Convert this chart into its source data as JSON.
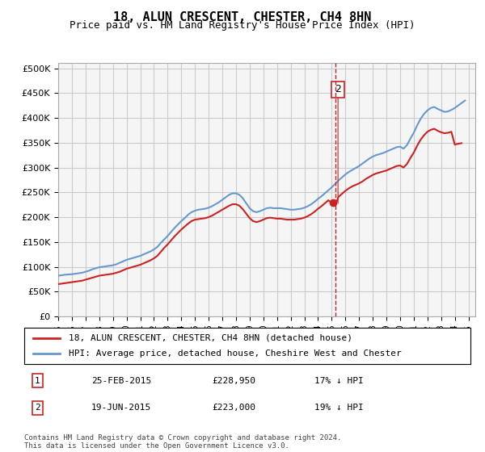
{
  "title": "18, ALUN CRESCENT, CHESTER, CH4 8HN",
  "subtitle": "Price paid vs. HM Land Registry's House Price Index (HPI)",
  "ylabel_ticks": [
    "£0",
    "£50K",
    "£100K",
    "£150K",
    "£200K",
    "£250K",
    "£300K",
    "£350K",
    "£400K",
    "£450K",
    "£500K"
  ],
  "ytick_vals": [
    0,
    50000,
    100000,
    150000,
    200000,
    250000,
    300000,
    350000,
    400000,
    450000,
    500000
  ],
  "ylim": [
    0,
    510000
  ],
  "xlim_start": 1995.0,
  "xlim_end": 2025.5,
  "hpi_color": "#6699cc",
  "price_color": "#cc2222",
  "annotation_color": "#cc2222",
  "grid_color": "#cccccc",
  "bg_color": "#f5f5f5",
  "legend_label_red": "18, ALUN CRESCENT, CHESTER, CH4 8HN (detached house)",
  "legend_label_blue": "HPI: Average price, detached house, Cheshire West and Chester",
  "transaction1_label": "1",
  "transaction1_date": "25-FEB-2015",
  "transaction1_price": "£228,950",
  "transaction1_pct": "17% ↓ HPI",
  "transaction2_label": "2",
  "transaction2_date": "19-JUN-2015",
  "transaction2_price": "£223,000",
  "transaction2_pct": "19% ↓ HPI",
  "footnote": "Contains HM Land Registry data © Crown copyright and database right 2024.\nThis data is licensed under the Open Government Licence v3.0.",
  "marker1_x": 2015.12,
  "marker1_y": 228950,
  "marker2_x": 2015.46,
  "marker2_y": 223000,
  "vline_x": 2015.3,
  "hpi_data_x": [
    1995,
    1995.25,
    1995.5,
    1995.75,
    1996,
    1996.25,
    1996.5,
    1996.75,
    1997,
    1997.25,
    1997.5,
    1997.75,
    1998,
    1998.25,
    1998.5,
    1998.75,
    1999,
    1999.25,
    1999.5,
    1999.75,
    2000,
    2000.25,
    2000.5,
    2000.75,
    2001,
    2001.25,
    2001.5,
    2001.75,
    2002,
    2002.25,
    2002.5,
    2002.75,
    2003,
    2003.25,
    2003.5,
    2003.75,
    2004,
    2004.25,
    2004.5,
    2004.75,
    2005,
    2005.25,
    2005.5,
    2005.75,
    2006,
    2006.25,
    2006.5,
    2006.75,
    2007,
    2007.25,
    2007.5,
    2007.75,
    2008,
    2008.25,
    2008.5,
    2008.75,
    2009,
    2009.25,
    2009.5,
    2009.75,
    2010,
    2010.25,
    2010.5,
    2010.75,
    2011,
    2011.25,
    2011.5,
    2011.75,
    2012,
    2012.25,
    2012.5,
    2012.75,
    2013,
    2013.25,
    2013.5,
    2013.75,
    2014,
    2014.25,
    2014.5,
    2014.75,
    2015,
    2015.25,
    2015.5,
    2015.75,
    2016,
    2016.25,
    2016.5,
    2016.75,
    2017,
    2017.25,
    2017.5,
    2017.75,
    2018,
    2018.25,
    2018.5,
    2018.75,
    2019,
    2019.25,
    2019.5,
    2019.75,
    2020,
    2020.25,
    2020.5,
    2020.75,
    2021,
    2021.25,
    2021.5,
    2021.75,
    2022,
    2022.25,
    2022.5,
    2022.75,
    2023,
    2023.25,
    2023.5,
    2023.75,
    2024,
    2024.25,
    2024.5,
    2024.75
  ],
  "hpi_data_y": [
    82000,
    83000,
    84000,
    84500,
    85000,
    86000,
    87000,
    88000,
    90000,
    92000,
    95000,
    97000,
    99000,
    100000,
    101000,
    102000,
    103000,
    105000,
    108000,
    111000,
    114000,
    116000,
    118000,
    120000,
    122000,
    125000,
    128000,
    131000,
    135000,
    140000,
    148000,
    155000,
    162000,
    170000,
    178000,
    185000,
    192000,
    198000,
    205000,
    210000,
    213000,
    215000,
    216000,
    217000,
    219000,
    222000,
    226000,
    230000,
    235000,
    240000,
    245000,
    248000,
    248000,
    245000,
    238000,
    228000,
    218000,
    212000,
    210000,
    212000,
    215000,
    218000,
    219000,
    218000,
    218000,
    218000,
    217000,
    216000,
    215000,
    215000,
    216000,
    217000,
    219000,
    222000,
    226000,
    231000,
    237000,
    242000,
    248000,
    254000,
    260000,
    267000,
    274000,
    280000,
    286000,
    291000,
    295000,
    299000,
    303000,
    308000,
    313000,
    318000,
    322000,
    325000,
    327000,
    329000,
    332000,
    335000,
    338000,
    341000,
    342000,
    338000,
    345000,
    358000,
    370000,
    385000,
    398000,
    408000,
    415000,
    420000,
    422000,
    418000,
    415000,
    412000,
    413000,
    416000,
    420000,
    425000,
    430000,
    435000
  ],
  "price_data_x": [
    1995,
    1995.25,
    1995.5,
    1995.75,
    1996,
    1996.25,
    1996.5,
    1996.75,
    1997,
    1997.25,
    1997.5,
    1997.75,
    1998,
    1998.25,
    1998.5,
    1998.75,
    1999,
    1999.25,
    1999.5,
    1999.75,
    2000,
    2000.25,
    2000.5,
    2000.75,
    2001,
    2001.25,
    2001.5,
    2001.75,
    2002,
    2002.25,
    2002.5,
    2002.75,
    2003,
    2003.25,
    2003.5,
    2003.75,
    2004,
    2004.25,
    2004.5,
    2004.75,
    2005,
    2005.25,
    2005.5,
    2005.75,
    2006,
    2006.25,
    2006.5,
    2006.75,
    2007,
    2007.25,
    2007.5,
    2007.75,
    2008,
    2008.25,
    2008.5,
    2008.75,
    2009,
    2009.25,
    2009.5,
    2009.75,
    2010,
    2010.25,
    2010.5,
    2010.75,
    2011,
    2011.25,
    2011.5,
    2011.75,
    2012,
    2012.25,
    2012.5,
    2012.75,
    2013,
    2013.25,
    2013.5,
    2013.75,
    2014,
    2014.25,
    2014.5,
    2014.75,
    2015,
    2015.25,
    2015.5,
    2015.75,
    2016,
    2016.25,
    2016.5,
    2016.75,
    2017,
    2017.25,
    2017.5,
    2017.75,
    2018,
    2018.25,
    2018.5,
    2018.75,
    2019,
    2019.25,
    2019.5,
    2019.75,
    2020,
    2020.25,
    2020.5,
    2020.75,
    2021,
    2021.25,
    2021.5,
    2021.75,
    2022,
    2022.25,
    2022.5,
    2022.75,
    2023,
    2023.25,
    2023.5,
    2023.75,
    2024,
    2024.25,
    2024.5
  ],
  "price_data_y": [
    65000,
    66000,
    67000,
    68000,
    69000,
    70000,
    71000,
    72000,
    74000,
    76000,
    78000,
    80000,
    82000,
    83000,
    84000,
    85000,
    86000,
    88000,
    90000,
    93000,
    96000,
    98000,
    100000,
    102000,
    104000,
    107000,
    110000,
    113000,
    117000,
    122000,
    130000,
    138000,
    145000,
    153000,
    161000,
    168000,
    175000,
    181000,
    187000,
    192000,
    195000,
    196000,
    197000,
    198000,
    200000,
    203000,
    207000,
    211000,
    215000,
    219000,
    223000,
    226000,
    226000,
    223000,
    216000,
    207000,
    198000,
    192000,
    190000,
    192000,
    195000,
    198000,
    199000,
    198000,
    197000,
    197000,
    196000,
    195000,
    195000,
    195000,
    196000,
    197000,
    199000,
    202000,
    206000,
    211000,
    217000,
    222000,
    228000,
    234000,
    228950,
    223000,
    241000,
    247000,
    253000,
    258000,
    262000,
    265000,
    268000,
    272000,
    277000,
    281000,
    285000,
    288000,
    290000,
    292000,
    294000,
    297000,
    300000,
    303000,
    304000,
    300000,
    307000,
    319000,
    330000,
    344000,
    356000,
    365000,
    372000,
    376000,
    378000,
    374000,
    371000,
    369000,
    370000,
    372000,
    346000,
    348000,
    349000
  ]
}
